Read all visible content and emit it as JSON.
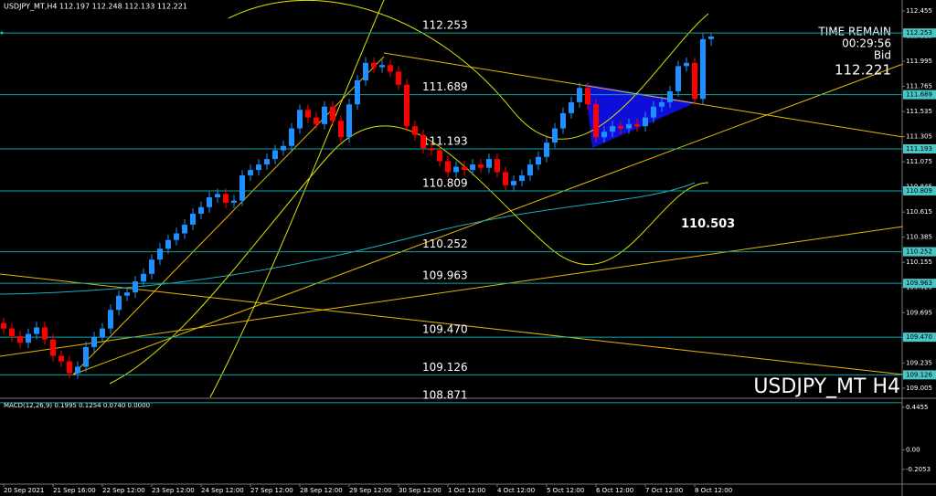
{
  "chart_data": {
    "type": "candlestick",
    "symbol_info": "USDJPY_MT,H4  112.197 112.248 112.133 112.221",
    "watermark": "USDJPY_MT H4",
    "timer": {
      "label": "TIME REMAIN",
      "time": "00:29:56",
      "bid_label": "Bid",
      "bid": "112.221"
    },
    "up_color": "#1e90ff",
    "down_color": "#ff0000",
    "level_color": "#0aa6a6",
    "ylim": [
      108.92,
      112.555
    ],
    "yticks": [
      112.455,
      112.225,
      111.995,
      111.765,
      111.535,
      111.305,
      111.075,
      110.845,
      110.615,
      110.385,
      110.155,
      109.925,
      109.695,
      109.465,
      109.235,
      109.005
    ],
    "levels": [
      112.253,
      111.689,
      111.193,
      110.809,
      110.252,
      109.963,
      109.47,
      109.126,
      108.871
    ],
    "level_labels": [
      "112.253",
      "111.689",
      "111.193",
      "110.809",
      "110.252",
      "109.963",
      "109.470",
      "109.126",
      "108.871"
    ],
    "target": 110.503,
    "xticks": [
      {
        "value": 0,
        "label": "20 Sep 2021"
      },
      {
        "value": 6,
        "label": "21 Sep 16:00"
      },
      {
        "value": 12,
        "label": "22 Sep 12:00"
      },
      {
        "value": 18,
        "label": "23 Sep 12:00"
      },
      {
        "value": 24,
        "label": "24 Sep 12:00"
      },
      {
        "value": 30,
        "label": "27 Sep 12:00"
      },
      {
        "value": 36,
        "label": "28 Sep 12:00"
      },
      {
        "value": 42,
        "label": "29 Sep 12:00"
      },
      {
        "value": 48,
        "label": "30 Sep 12:00"
      },
      {
        "value": 54,
        "label": "1 Oct 12:00"
      },
      {
        "value": 60,
        "label": "4 Oct 12:00"
      },
      {
        "value": 66,
        "label": "5 Oct 12:00"
      },
      {
        "value": 72,
        "label": "6 Oct 12:00"
      },
      {
        "value": 78,
        "label": "7 Oct 12:00"
      },
      {
        "value": 84,
        "label": "8 Oct 12:00"
      }
    ],
    "candles": [
      [
        109.6,
        109.65,
        109.5,
        109.55
      ],
      [
        109.55,
        109.6,
        109.43,
        109.48
      ],
      [
        109.48,
        109.53,
        109.37,
        109.42
      ],
      [
        109.42,
        109.55,
        109.37,
        109.5
      ],
      [
        109.5,
        109.61,
        109.45,
        109.56
      ],
      [
        109.56,
        109.61,
        109.4,
        109.45
      ],
      [
        109.45,
        109.5,
        109.25,
        109.3
      ],
      [
        109.3,
        109.35,
        109.2,
        109.25
      ],
      [
        109.25,
        109.3,
        109.09,
        109.14
      ],
      [
        109.14,
        109.25,
        109.09,
        109.2
      ],
      [
        109.2,
        109.43,
        109.15,
        109.38
      ],
      [
        109.38,
        109.52,
        109.33,
        109.47
      ],
      [
        109.47,
        109.6,
        109.42,
        109.55
      ],
      [
        109.55,
        109.77,
        109.5,
        109.72
      ],
      [
        109.72,
        109.9,
        109.67,
        109.85
      ],
      [
        109.85,
        109.93,
        109.8,
        109.88
      ],
      [
        109.88,
        110.03,
        109.83,
        109.98
      ],
      [
        109.98,
        110.1,
        109.93,
        110.05
      ],
      [
        110.05,
        110.23,
        110.0,
        110.18
      ],
      [
        110.18,
        110.33,
        110.13,
        110.28
      ],
      [
        110.28,
        110.41,
        110.23,
        110.36
      ],
      [
        110.36,
        110.47,
        110.31,
        110.42
      ],
      [
        110.42,
        110.55,
        110.37,
        110.5
      ],
      [
        110.5,
        110.65,
        110.45,
        110.6
      ],
      [
        110.6,
        110.71,
        110.55,
        110.66
      ],
      [
        110.66,
        110.8,
        110.61,
        110.75
      ],
      [
        110.75,
        110.83,
        110.7,
        110.78
      ],
      [
        110.78,
        110.83,
        110.65,
        110.7
      ],
      [
        110.7,
        110.77,
        110.65,
        110.72
      ],
      [
        110.72,
        111.0,
        110.67,
        110.95
      ],
      [
        110.95,
        111.05,
        110.9,
        111.0
      ],
      [
        111.0,
        111.1,
        110.95,
        111.05
      ],
      [
        111.05,
        111.15,
        111.0,
        111.1
      ],
      [
        111.1,
        111.23,
        111.05,
        111.18
      ],
      [
        111.18,
        111.27,
        111.13,
        111.22
      ],
      [
        111.22,
        111.43,
        111.17,
        111.38
      ],
      [
        111.38,
        111.6,
        111.33,
        111.55
      ],
      [
        111.55,
        111.6,
        111.43,
        111.48
      ],
      [
        111.48,
        111.53,
        111.37,
        111.42
      ],
      [
        111.42,
        111.63,
        111.37,
        111.58
      ],
      [
        111.58,
        111.63,
        111.4,
        111.45
      ],
      [
        111.45,
        111.5,
        111.25,
        111.3
      ],
      [
        111.3,
        111.65,
        111.25,
        111.6
      ],
      [
        111.6,
        111.87,
        111.55,
        111.82
      ],
      [
        111.82,
        112.03,
        111.77,
        111.98
      ],
      [
        111.98,
        112.03,
        111.89,
        111.94
      ],
      [
        111.94,
        112.01,
        111.89,
        111.96
      ],
      [
        111.96,
        112.01,
        111.85,
        111.9
      ],
      [
        111.9,
        111.95,
        111.73,
        111.78
      ],
      [
        111.78,
        111.83,
        111.35,
        111.4
      ],
      [
        111.4,
        111.45,
        111.27,
        111.32
      ],
      [
        111.32,
        111.37,
        111.15,
        111.2
      ],
      [
        111.2,
        111.25,
        111.13,
        111.18
      ],
      [
        111.18,
        111.23,
        111.03,
        111.08
      ],
      [
        111.08,
        111.13,
        110.93,
        110.98
      ],
      [
        110.98,
        111.08,
        110.93,
        111.03
      ],
      [
        111.03,
        111.08,
        110.95,
        111.0
      ],
      [
        111.0,
        111.1,
        110.95,
        111.05
      ],
      [
        111.05,
        111.1,
        110.97,
        111.02
      ],
      [
        111.02,
        111.15,
        110.97,
        111.1
      ],
      [
        111.1,
        111.15,
        110.93,
        110.98
      ],
      [
        110.98,
        111.03,
        110.81,
        110.86
      ],
      [
        110.86,
        110.95,
        110.81,
        110.9
      ],
      [
        110.9,
        111.0,
        110.85,
        110.95
      ],
      [
        110.95,
        111.1,
        110.9,
        111.05
      ],
      [
        111.05,
        111.17,
        111.0,
        111.12
      ],
      [
        111.12,
        111.3,
        111.07,
        111.25
      ],
      [
        111.25,
        111.43,
        111.2,
        111.38
      ],
      [
        111.38,
        111.57,
        111.33,
        111.52
      ],
      [
        111.52,
        111.67,
        111.47,
        111.62
      ],
      [
        111.62,
        111.8,
        111.57,
        111.75
      ],
      [
        111.75,
        111.8,
        111.55,
        111.6
      ],
      [
        111.6,
        111.65,
        111.25,
        111.3
      ],
      [
        111.3,
        111.4,
        111.25,
        111.35
      ],
      [
        111.35,
        111.45,
        111.3,
        111.4
      ],
      [
        111.4,
        111.45,
        111.33,
        111.38
      ],
      [
        111.38,
        111.47,
        111.33,
        111.42
      ],
      [
        111.42,
        111.47,
        111.35,
        111.4
      ],
      [
        111.4,
        111.53,
        111.35,
        111.48
      ],
      [
        111.48,
        111.63,
        111.43,
        111.58
      ],
      [
        111.58,
        111.67,
        111.53,
        111.62
      ],
      [
        111.62,
        111.77,
        111.57,
        111.72
      ],
      [
        111.72,
        112.0,
        111.67,
        111.95
      ],
      [
        111.95,
        112.03,
        111.9,
        111.98
      ],
      [
        111.98,
        112.03,
        111.6,
        111.65
      ],
      [
        111.65,
        112.25,
        111.6,
        112.197
      ],
      [
        112.197,
        112.248,
        112.133,
        112.221
      ]
    ],
    "macd": {
      "label": "MACD(12,26,9) 0.1995 0.1254 0.0740 0.0000",
      "ylim": [
        -0.36,
        0.53
      ],
      "yticks": [
        0.4455,
        {
          "value": 0,
          "label": "0.00"
        },
        -0.2053
      ]
    }
  }
}
